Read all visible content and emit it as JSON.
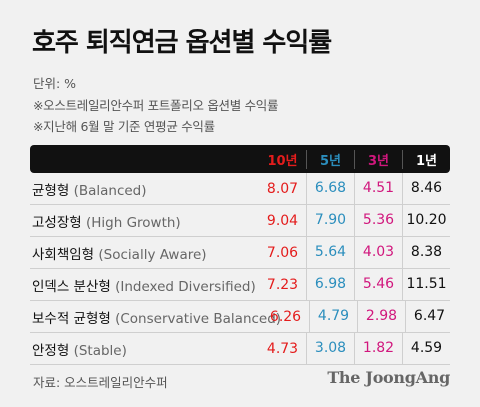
{
  "title": "호주 퇴직연금 옵션별 수익률",
  "unit": "단위: %",
  "notes": [
    "※오스트레일리안수퍼 포트폴리오 옵션별 수익률",
    "※지난해 6월 말 기준 연평균 수익률"
  ],
  "source": "자료: 오스트레일리안수퍼",
  "logo": "The JoongAng",
  "colors": {
    "y10": "#e41c1c",
    "y5": "#2b8ebd",
    "y3": "#d1177d",
    "y1": "#111111",
    "header_bg": "#111111",
    "page_bg": "#f1f1f1"
  },
  "chart_data": {
    "type": "table",
    "columns": [
      "10년",
      "5년",
      "3년",
      "1년"
    ],
    "rows": [
      {
        "name": "균형형",
        "name_en": "(Balanced)",
        "values": [
          "8.07",
          "6.68",
          "4.51",
          "8.46"
        ]
      },
      {
        "name": "고성장형",
        "name_en": "(High Growth)",
        "values": [
          "9.04",
          "7.90",
          "5.36",
          "10.20"
        ]
      },
      {
        "name": "사회책임형",
        "name_en": "(Socially Aware)",
        "values": [
          "7.06",
          "5.64",
          "4.03",
          "8.38"
        ]
      },
      {
        "name": "인덱스 분산형",
        "name_en": "(Indexed Diversified)",
        "values": [
          "7.23",
          "6.98",
          "5.46",
          "11.51"
        ]
      },
      {
        "name": "보수적 균형형",
        "name_en": "(Conservative Balanced)",
        "values": [
          "6.26",
          "4.79",
          "2.98",
          "6.47"
        ]
      },
      {
        "name": "안정형",
        "name_en": "(Stable)",
        "values": [
          "4.73",
          "3.08",
          "1.82",
          "4.59"
        ]
      }
    ]
  }
}
